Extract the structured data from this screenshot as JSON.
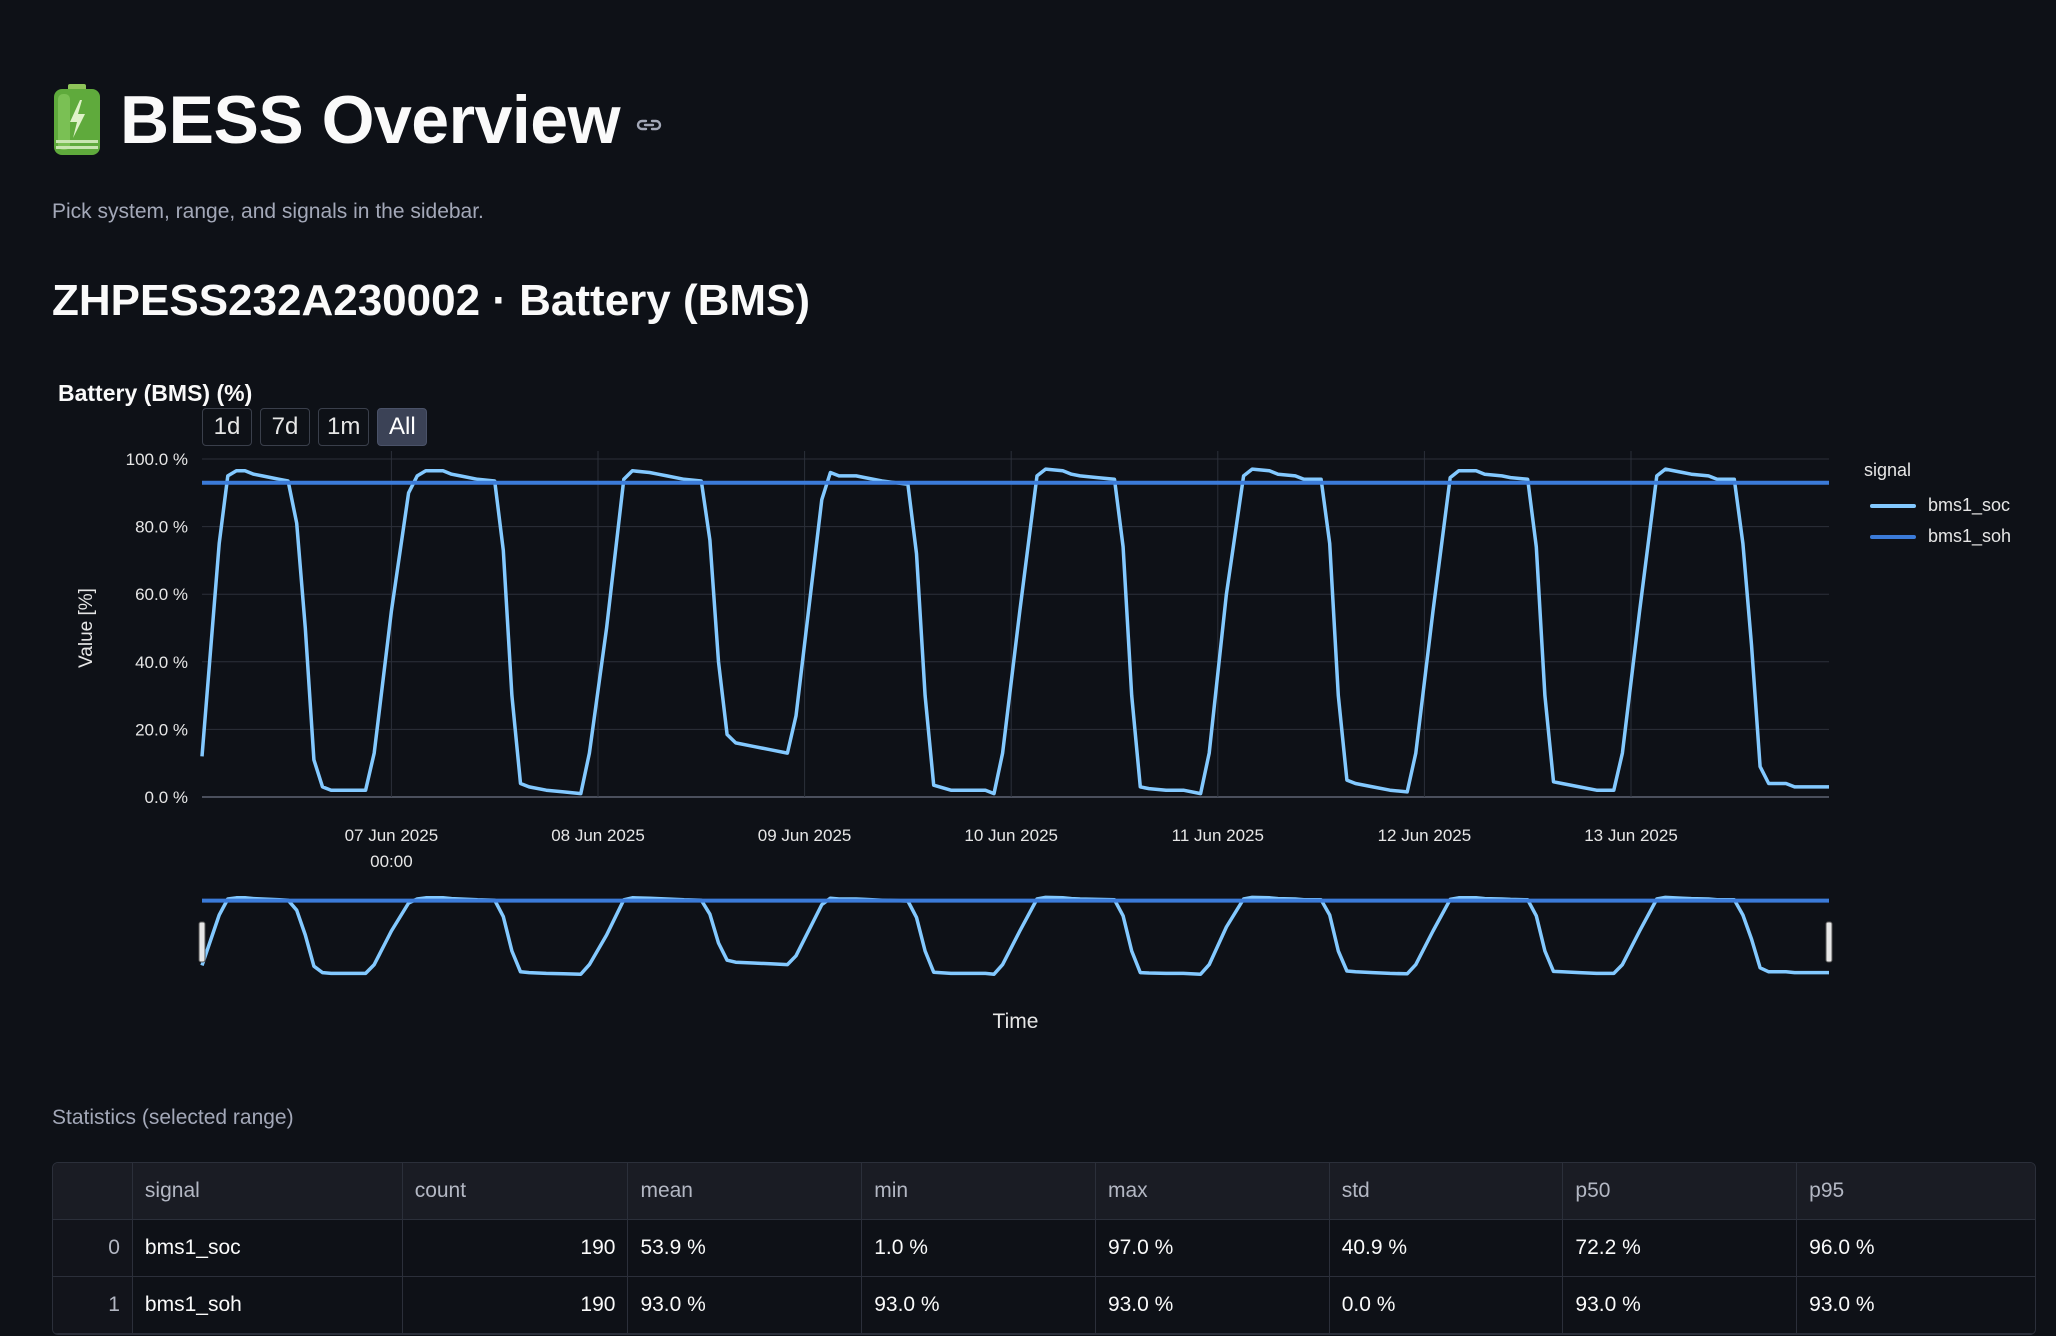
{
  "page": {
    "title": "BESS Overview",
    "caption": "Pick system, range, and signals in the sidebar.",
    "section_title": "ZHPESS232A230002 · Battery (BMS)"
  },
  "chart": {
    "title": "Battery (BMS) (%)",
    "range_buttons": [
      "1d",
      "7d",
      "1m",
      "All"
    ],
    "active_range": "All",
    "legend_title": "signal",
    "xlabel": "Time",
    "ylabel": "Value [%]",
    "x_tick_year_note": "00:00"
  },
  "chart_data": {
    "type": "line",
    "title": "Battery (BMS) (%)",
    "xlabel": "Time",
    "ylabel": "Value [%]",
    "ylim": [
      0,
      100
    ],
    "y_ticks": [
      "0.0 %",
      "20.0 %",
      "40.0 %",
      "60.0 %",
      "80.0 %",
      "100.0 %"
    ],
    "y_tick_values": [
      0,
      20,
      40,
      60,
      80,
      100
    ],
    "x_ticks": [
      "07 Jun 2025",
      "08 Jun 2025",
      "09 Jun 2025",
      "10 Jun 2025",
      "11 Jun 2025",
      "12 Jun 2025",
      "13 Jun 2025"
    ],
    "x_tick_dates": [
      "2025-06-07T00:00",
      "2025-06-08T00:00",
      "2025-06-09T00:00",
      "2025-06-10T00:00",
      "2025-06-11T00:00",
      "2025-06-12T00:00",
      "2025-06-13T00:00"
    ],
    "xlim": [
      "2025-06-06T02:00",
      "2025-06-13T23:00"
    ],
    "grid": true,
    "legend_position": "right",
    "series": [
      {
        "name": "bms1_soc",
        "color": "#83c9ff",
        "points": [
          [
            "2025-06-06T02:00",
            12
          ],
          [
            "2025-06-06T04:00",
            75
          ],
          [
            "2025-06-06T05:00",
            95
          ],
          [
            "2025-06-06T06:00",
            96.5
          ],
          [
            "2025-06-06T07:00",
            96.5
          ],
          [
            "2025-06-06T08:00",
            95.5
          ],
          [
            "2025-06-06T09:00",
            95
          ],
          [
            "2025-06-06T10:00",
            94.5
          ],
          [
            "2025-06-06T11:00",
            94
          ],
          [
            "2025-06-06T12:00",
            93.5
          ],
          [
            "2025-06-06T13:00",
            81
          ],
          [
            "2025-06-06T14:00",
            50
          ],
          [
            "2025-06-06T15:00",
            11
          ],
          [
            "2025-06-06T16:00",
            3
          ],
          [
            "2025-06-06T17:00",
            2
          ],
          [
            "2025-06-06T19:00",
            2
          ],
          [
            "2025-06-06T21:00",
            2
          ],
          [
            "2025-06-06T22:00",
            13
          ],
          [
            "2025-06-07T00:00",
            55
          ],
          [
            "2025-06-07T02:00",
            90
          ],
          [
            "2025-06-07T03:00",
            95
          ],
          [
            "2025-06-07T04:00",
            96.5
          ],
          [
            "2025-06-07T06:00",
            96.5
          ],
          [
            "2025-06-07T07:00",
            95.5
          ],
          [
            "2025-06-07T08:00",
            95
          ],
          [
            "2025-06-07T10:00",
            94
          ],
          [
            "2025-06-07T12:00",
            93.5
          ],
          [
            "2025-06-07T13:00",
            73
          ],
          [
            "2025-06-07T14:00",
            30
          ],
          [
            "2025-06-07T15:00",
            4
          ],
          [
            "2025-06-07T16:00",
            3
          ],
          [
            "2025-06-07T18:00",
            2
          ],
          [
            "2025-06-07T20:00",
            1.5
          ],
          [
            "2025-06-07T22:00",
            1
          ],
          [
            "2025-06-07T23:00",
            13
          ],
          [
            "2025-06-08T01:00",
            50
          ],
          [
            "2025-06-08T03:00",
            94
          ],
          [
            "2025-06-08T04:00",
            96.5
          ],
          [
            "2025-06-08T06:00",
            96
          ],
          [
            "2025-06-08T07:00",
            95.5
          ],
          [
            "2025-06-08T08:00",
            95
          ],
          [
            "2025-06-08T10:00",
            94
          ],
          [
            "2025-06-08T12:00",
            93.5
          ],
          [
            "2025-06-08T13:00",
            76
          ],
          [
            "2025-06-08T14:00",
            40
          ],
          [
            "2025-06-08T15:00",
            18.5
          ],
          [
            "2025-06-08T16:00",
            16
          ],
          [
            "2025-06-08T18:00",
            15
          ],
          [
            "2025-06-08T20:00",
            14
          ],
          [
            "2025-06-08T22:00",
            13
          ],
          [
            "2025-06-08T23:00",
            24
          ],
          [
            "2025-06-09T02:00",
            88
          ],
          [
            "2025-06-09T03:00",
            96
          ],
          [
            "2025-06-09T04:00",
            95
          ],
          [
            "2025-06-09T06:00",
            95
          ],
          [
            "2025-06-09T07:00",
            94.5
          ],
          [
            "2025-06-09T09:00",
            93.5
          ],
          [
            "2025-06-09T12:00",
            92.5
          ],
          [
            "2025-06-09T13:00",
            72
          ],
          [
            "2025-06-09T14:00",
            30
          ],
          [
            "2025-06-09T15:00",
            3.5
          ],
          [
            "2025-06-09T17:00",
            2
          ],
          [
            "2025-06-09T19:00",
            2
          ],
          [
            "2025-06-09T21:00",
            2
          ],
          [
            "2025-06-09T22:00",
            1
          ],
          [
            "2025-06-09T23:00",
            13
          ],
          [
            "2025-06-10T01:00",
            55
          ],
          [
            "2025-06-10T03:00",
            95
          ],
          [
            "2025-06-10T04:00",
            97
          ],
          [
            "2025-06-10T06:00",
            96.5
          ],
          [
            "2025-06-10T07:00",
            95.5
          ],
          [
            "2025-06-10T08:00",
            95
          ],
          [
            "2025-06-10T10:00",
            94.5
          ],
          [
            "2025-06-10T12:00",
            94
          ],
          [
            "2025-06-10T13:00",
            74
          ],
          [
            "2025-06-10T14:00",
            30
          ],
          [
            "2025-06-10T15:00",
            3
          ],
          [
            "2025-06-10T16:00",
            2.5
          ],
          [
            "2025-06-10T18:00",
            2
          ],
          [
            "2025-06-10T20:00",
            2
          ],
          [
            "2025-06-10T22:00",
            1
          ],
          [
            "2025-06-10T23:00",
            13
          ],
          [
            "2025-06-11T01:00",
            60
          ],
          [
            "2025-06-11T03:00",
            95
          ],
          [
            "2025-06-11T04:00",
            97
          ],
          [
            "2025-06-11T06:00",
            96.5
          ],
          [
            "2025-06-11T07:00",
            95.5
          ],
          [
            "2025-06-11T09:00",
            95
          ],
          [
            "2025-06-11T10:00",
            94
          ],
          [
            "2025-06-11T12:00",
            94
          ],
          [
            "2025-06-11T13:00",
            75
          ],
          [
            "2025-06-11T14:00",
            30
          ],
          [
            "2025-06-11T15:00",
            5
          ],
          [
            "2025-06-11T16:00",
            4
          ],
          [
            "2025-06-11T18:00",
            3
          ],
          [
            "2025-06-11T20:00",
            2
          ],
          [
            "2025-06-11T22:00",
            1.5
          ],
          [
            "2025-06-11T23:00",
            13
          ],
          [
            "2025-06-12T01:00",
            55
          ],
          [
            "2025-06-12T03:00",
            94.5
          ],
          [
            "2025-06-12T04:00",
            96.5
          ],
          [
            "2025-06-12T06:00",
            96.5
          ],
          [
            "2025-06-12T07:00",
            95.5
          ],
          [
            "2025-06-12T09:00",
            95
          ],
          [
            "2025-06-12T10:00",
            94.5
          ],
          [
            "2025-06-12T12:00",
            94
          ],
          [
            "2025-06-12T13:00",
            74
          ],
          [
            "2025-06-12T14:00",
            30
          ],
          [
            "2025-06-12T15:00",
            4.5
          ],
          [
            "2025-06-12T16:00",
            4
          ],
          [
            "2025-06-12T18:00",
            3
          ],
          [
            "2025-06-12T20:00",
            2
          ],
          [
            "2025-06-12T22:00",
            2
          ],
          [
            "2025-06-12T23:00",
            13
          ],
          [
            "2025-06-13T01:00",
            55
          ],
          [
            "2025-06-13T03:00",
            95
          ],
          [
            "2025-06-13T04:00",
            97
          ],
          [
            "2025-06-13T06:00",
            96
          ],
          [
            "2025-06-13T07:00",
            95.5
          ],
          [
            "2025-06-13T09:00",
            95
          ],
          [
            "2025-06-13T10:00",
            94
          ],
          [
            "2025-06-13T12:00",
            94
          ],
          [
            "2025-06-13T13:00",
            75
          ],
          [
            "2025-06-13T14:00",
            45
          ],
          [
            "2025-06-13T15:00",
            9
          ],
          [
            "2025-06-13T16:00",
            4
          ],
          [
            "2025-06-13T18:00",
            4
          ],
          [
            "2025-06-13T19:00",
            3
          ],
          [
            "2025-06-13T21:00",
            3
          ],
          [
            "2025-06-13T23:00",
            3
          ]
        ]
      },
      {
        "name": "bms1_soh",
        "color": "#3b7bd9",
        "points": [
          [
            "2025-06-06T02:00",
            93
          ],
          [
            "2025-06-13T23:00",
            93
          ]
        ]
      }
    ]
  },
  "stats": {
    "label": "Statistics (selected range)",
    "columns": [
      "",
      "signal",
      "count",
      "mean",
      "min",
      "max",
      "std",
      "p50",
      "p95"
    ],
    "rows": [
      [
        "0",
        "bms1_soc",
        "190",
        "53.9 %",
        "1.0 %",
        "97.0 %",
        "40.9 %",
        "72.2 %",
        "96.0 %"
      ],
      [
        "1",
        "bms1_soh",
        "190",
        "93.0 %",
        "93.0 %",
        "93.0 %",
        "0.0 %",
        "93.0 %",
        "93.0 %"
      ]
    ]
  }
}
